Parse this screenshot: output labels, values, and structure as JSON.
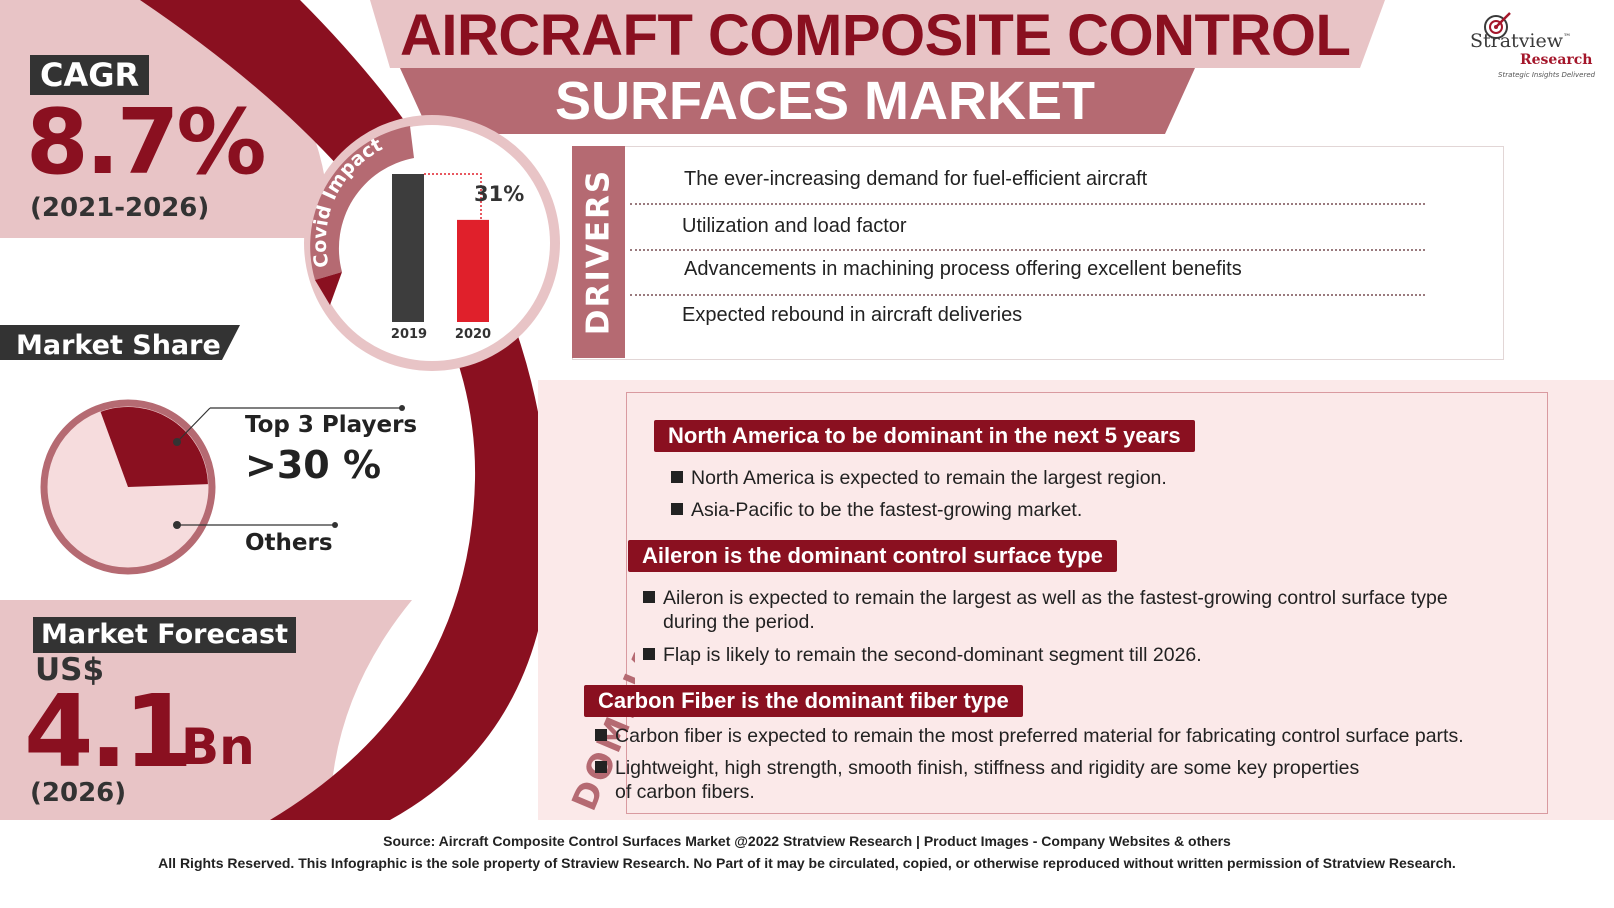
{
  "header": {
    "title_line1": "AIRCRAFT COMPOSITE CONTROL",
    "title_line2": "SURFACES MARKET"
  },
  "logo": {
    "wordmark": "Stratview",
    "tm": "™",
    "sub": "Research",
    "tagline": "Strategic Insights Delivered"
  },
  "cagr": {
    "label": "CAGR",
    "value": "8.7%",
    "period": "(2021-2026)"
  },
  "covid": {
    "label": "Covid Impact",
    "change_label": "31%",
    "chart_data": {
      "type": "bar",
      "categories": [
        "2019",
        "2020"
      ],
      "values": [
        100,
        69
      ]
    }
  },
  "market_share": {
    "label": "Market Share",
    "top_label": "Top 3 Players",
    "top_value": ">30 %",
    "others_label": "Others",
    "top_share": 0.3
  },
  "forecast": {
    "label": "Market Forecast",
    "currency": "US$",
    "value": "4.1",
    "unit": "Bn",
    "year": "(2026)"
  },
  "drivers": {
    "title": "DRIVERS",
    "items": [
      "The ever-increasing  demand for fuel-efficient aircraft",
      "Utilization and load factor",
      "Advancements in machining process offering excellent benefits",
      "Expected rebound in aircraft deliveries"
    ]
  },
  "segments": {
    "title": "DOMINANT SEGMENTS",
    "groups": [
      {
        "heading": "North America to be dominant in the next 5 years",
        "bullets": [
          "North America is expected to remain the largest region.",
          "Asia-Pacific to be the fastest-growing market."
        ]
      },
      {
        "heading": "Aileron is the dominant control surface type",
        "bullets": [
          "Aileron is expected to remain the largest as well as the fastest-growing control surface type",
          "during the period.",
          "Flap is likely to remain the second-dominant segment till 2026."
        ]
      },
      {
        "heading": "Carbon Fiber is the dominant fiber type",
        "bullets": [
          "Carbon fiber is expected to remain the most preferred material for fabricating control surface parts.",
          "Lightweight, high strength, smooth finish, stiffness and rigidity are some key properties",
          "of carbon fibers."
        ]
      }
    ]
  },
  "footer": {
    "source": "Source: Aircraft Composite Control Surfaces Market @2022 Stratview Research | Product Images - Company Websites & others",
    "rights": "All Rights Reserved. This Infographic is the sole property of Straview Research. No Part of it may be circulated, copied, or otherwise reproduced without written permission of Stratview Research."
  },
  "colors": {
    "maroon": "#8a1020",
    "rose": "#b56a72",
    "light_pink": "#e8c4c6",
    "pale_pink": "#fbe9e9",
    "bar_2019": "#3d3d3d",
    "bar_2020": "#e0202b"
  }
}
